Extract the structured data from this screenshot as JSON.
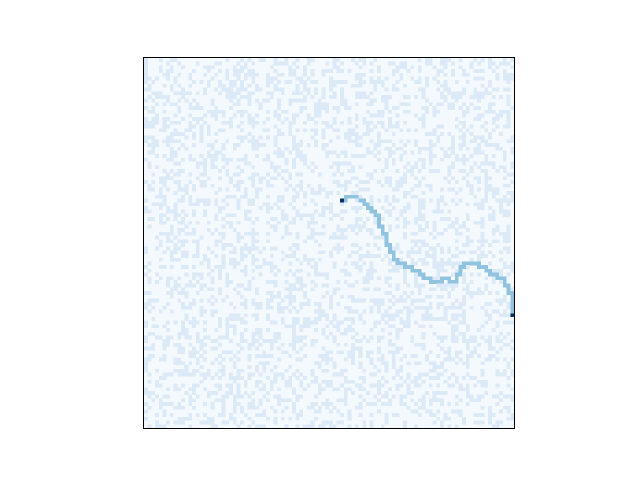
{
  "chart_data": {
    "type": "heatmap",
    "title": "",
    "xlabel": "",
    "ylabel": "",
    "grid_size": [
      100,
      100
    ],
    "colormap": "Blues",
    "axes_visible": false,
    "background_levels": [
      0,
      1
    ],
    "background_density": 0.35,
    "random_seed": 7,
    "levels": {
      "0": "#f4f9fe",
      "1": "#dce9f6",
      "2": "#90c3df",
      "3": "#08306b"
    },
    "path_value": 2,
    "start": {
      "x": 53,
      "y": 38,
      "value": 3
    },
    "end": {
      "x": 99,
      "y": 69,
      "value": 3
    },
    "path": [
      [
        53,
        38
      ],
      [
        54,
        38
      ],
      [
        54,
        37
      ],
      [
        55,
        37
      ],
      [
        56,
        37
      ],
      [
        57,
        37
      ],
      [
        58,
        38
      ],
      [
        59,
        38
      ],
      [
        59,
        39
      ],
      [
        60,
        39
      ],
      [
        60,
        40
      ],
      [
        61,
        40
      ],
      [
        61,
        41
      ],
      [
        62,
        41
      ],
      [
        62,
        42
      ],
      [
        63,
        42
      ],
      [
        63,
        43
      ],
      [
        63,
        44
      ],
      [
        63,
        45
      ],
      [
        64,
        45
      ],
      [
        64,
        46
      ],
      [
        64,
        47
      ],
      [
        65,
        47
      ],
      [
        65,
        48
      ],
      [
        65,
        49
      ],
      [
        65,
        50
      ],
      [
        66,
        50
      ],
      [
        66,
        51
      ],
      [
        66,
        52
      ],
      [
        67,
        52
      ],
      [
        67,
        53
      ],
      [
        67,
        54
      ],
      [
        68,
        54
      ],
      [
        68,
        55
      ],
      [
        69,
        55
      ],
      [
        70,
        55
      ],
      [
        70,
        56
      ],
      [
        71,
        56
      ],
      [
        72,
        56
      ],
      [
        72,
        57
      ],
      [
        73,
        57
      ],
      [
        74,
        57
      ],
      [
        74,
        58
      ],
      [
        75,
        58
      ],
      [
        75,
        59
      ],
      [
        76,
        59
      ],
      [
        77,
        59
      ],
      [
        77,
        60
      ],
      [
        78,
        60
      ],
      [
        79,
        60
      ],
      [
        80,
        60
      ],
      [
        80,
        59
      ],
      [
        81,
        59
      ],
      [
        82,
        59
      ],
      [
        82,
        60
      ],
      [
        83,
        60
      ],
      [
        84,
        60
      ],
      [
        84,
        59
      ],
      [
        84,
        58
      ],
      [
        85,
        58
      ],
      [
        85,
        57
      ],
      [
        85,
        56
      ],
      [
        86,
        56
      ],
      [
        86,
        55
      ],
      [
        87,
        55
      ],
      [
        88,
        55
      ],
      [
        89,
        55
      ],
      [
        90,
        55
      ],
      [
        90,
        56
      ],
      [
        91,
        56
      ],
      [
        92,
        56
      ],
      [
        92,
        57
      ],
      [
        93,
        57
      ],
      [
        93,
        58
      ],
      [
        94,
        58
      ],
      [
        95,
        58
      ],
      [
        95,
        59
      ],
      [
        96,
        59
      ],
      [
        97,
        59
      ],
      [
        97,
        60
      ],
      [
        97,
        61
      ],
      [
        98,
        61
      ],
      [
        98,
        62
      ],
      [
        98,
        63
      ],
      [
        99,
        63
      ],
      [
        99,
        64
      ],
      [
        99,
        65
      ],
      [
        99,
        66
      ],
      [
        99,
        67
      ],
      [
        99,
        68
      ],
      [
        99,
        69
      ]
    ]
  }
}
